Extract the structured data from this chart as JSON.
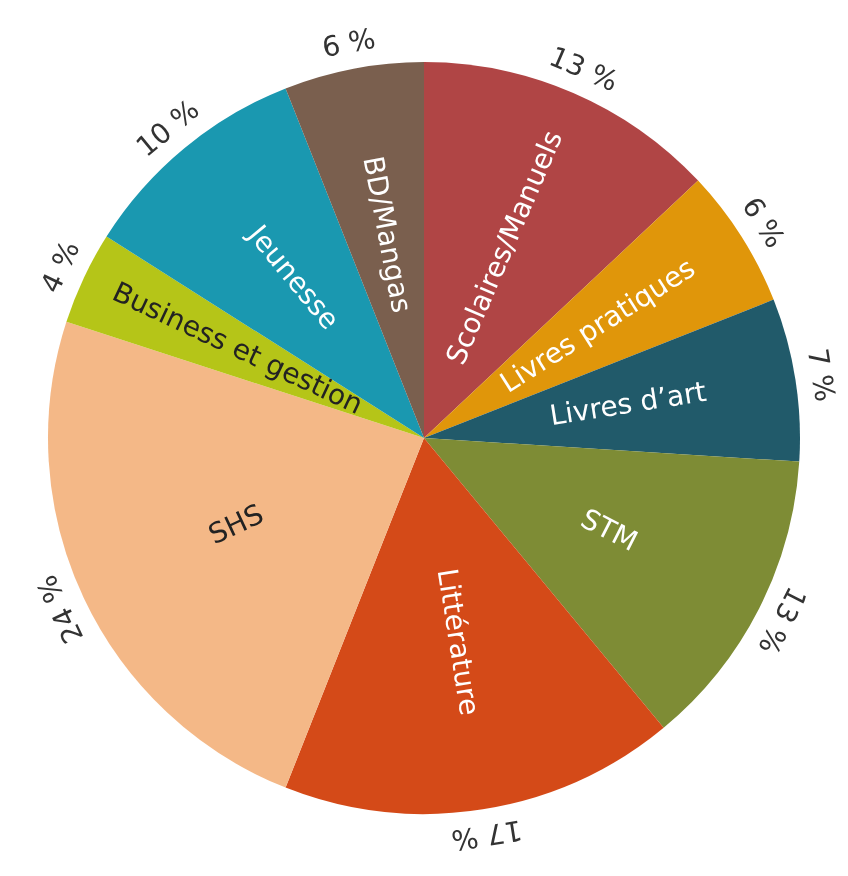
{
  "chart_data": {
    "type": "pie",
    "categories": [
      "Scolaires/Manuels",
      "Livres pratiques",
      "Livres d’art",
      "STM",
      "Littérature",
      "SHS",
      "Business et gestion",
      "Jeunesse",
      "BD/Mangas"
    ],
    "values": [
      13,
      6,
      7,
      13,
      17,
      24,
      4,
      10,
      6
    ],
    "colors": [
      "#b04545",
      "#e0960a",
      "#215a6a",
      "#7e8c35",
      "#d44a18",
      "#f4b887",
      "#b5c518",
      "#1a98b0",
      "#7a5f4e"
    ],
    "value_labels": [
      "13 %",
      "6 %",
      "7 %",
      "13 %",
      "17 %",
      "24 %",
      "4 %",
      "10 %",
      "6 %"
    ]
  }
}
